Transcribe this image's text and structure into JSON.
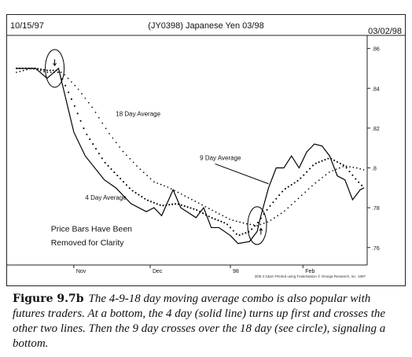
{
  "chart_data": {
    "type": "line",
    "header_left": "10/15/97",
    "title": "(JY0398) Japanese Yen 03/98",
    "header_right": "03/02/98",
    "x_tick_labels": [
      "Nov",
      "Dec",
      "98",
      "Feb"
    ],
    "y_ticks": [
      0.76,
      0.78,
      0.8,
      0.82,
      0.84,
      0.86
    ],
    "y_tick_labels": [
      ".76",
      ".78",
      ".8",
      ".82",
      ".84",
      ".86"
    ],
    "ylim": [
      0.752,
      0.865
    ],
    "n_bars": 92,
    "series": [
      {
        "name": "4 Day Average",
        "style": "solid",
        "x": [
          0,
          5,
          8,
          11,
          15,
          18,
          23,
          26,
          30,
          34,
          36,
          38,
          41,
          43,
          47,
          49,
          51,
          53,
          56,
          58,
          61,
          63,
          64,
          66,
          68,
          70,
          72,
          74,
          76,
          78,
          80,
          82,
          84,
          86,
          88,
          90,
          91
        ],
        "y": [
          0.85,
          0.85,
          0.845,
          0.85,
          0.818,
          0.806,
          0.794,
          0.79,
          0.782,
          0.778,
          0.78,
          0.776,
          0.789,
          0.78,
          0.775,
          0.78,
          0.77,
          0.77,
          0.766,
          0.762,
          0.763,
          0.768,
          0.776,
          0.79,
          0.8,
          0.8,
          0.806,
          0.8,
          0.808,
          0.812,
          0.811,
          0.806,
          0.796,
          0.794,
          0.784,
          0.789,
          0.79
        ]
      },
      {
        "name": "9 Day Average",
        "style": "dotted",
        "x": [
          0,
          5,
          8,
          11,
          15,
          18,
          23,
          26,
          30,
          34,
          38,
          42,
          47,
          51,
          55,
          58,
          61,
          63,
          66,
          70,
          74,
          78,
          82,
          86,
          89,
          91
        ],
        "y": [
          0.85,
          0.85,
          0.849,
          0.849,
          0.832,
          0.818,
          0.803,
          0.797,
          0.789,
          0.784,
          0.781,
          0.782,
          0.779,
          0.775,
          0.772,
          0.766,
          0.768,
          0.772,
          0.78,
          0.789,
          0.794,
          0.802,
          0.805,
          0.801,
          0.794,
          0.79
        ]
      },
      {
        "name": "18 Day Average",
        "style": "dotted",
        "x": [
          0,
          4,
          8,
          12,
          16,
          20,
          24,
          28,
          32,
          36,
          40,
          44,
          48,
          52,
          56,
          60,
          63,
          66,
          70,
          74,
          78,
          82,
          86,
          89,
          91
        ],
        "y": [
          0.848,
          0.85,
          0.848,
          0.848,
          0.84,
          0.83,
          0.818,
          0.808,
          0.8,
          0.793,
          0.79,
          0.786,
          0.782,
          0.778,
          0.774,
          0.772,
          0.771,
          0.773,
          0.778,
          0.785,
          0.792,
          0.798,
          0.801,
          0.8,
          0.799
        ]
      }
    ],
    "annotations": [
      {
        "text": "18 Day Average",
        "x": 26,
        "y": 0.826
      },
      {
        "text": "9 Day Average",
        "x": 48,
        "y": 0.804
      },
      {
        "text": "4 Day Average",
        "x": 18,
        "y": 0.784
      },
      {
        "text": "Price Bars Have Been",
        "x": 9,
        "y": 0.768
      },
      {
        "text": "Removed for Clarity",
        "x": 9,
        "y": 0.761
      }
    ],
    "circles": [
      {
        "x": 10,
        "y": 0.85
      },
      {
        "x": 63,
        "y": 0.771
      }
    ],
    "arrow_markers": [
      {
        "direction": "down",
        "x": 10,
        "y": 0.853
      },
      {
        "direction": "up",
        "x": 64,
        "y": 0.768
      }
    ],
    "pointer_line": {
      "from": {
        "x": 52,
        "y": 0.802
      },
      "to": {
        "x": 66,
        "y": 0.792
      }
    },
    "footer": "3/05 2:23pm Printed using TradeStation © Omega Research, Inc. 1997",
    "grid": false
  },
  "caption": {
    "label": "Figure 9.7b",
    "text": "The 4-9-18 day moving average combo is also popular with futures traders. At a bottom, the 4 day (solid line) turns up first and crosses the other two lines. Then the 9 day crosses over the 18 day (see circle), signaling a bottom."
  }
}
